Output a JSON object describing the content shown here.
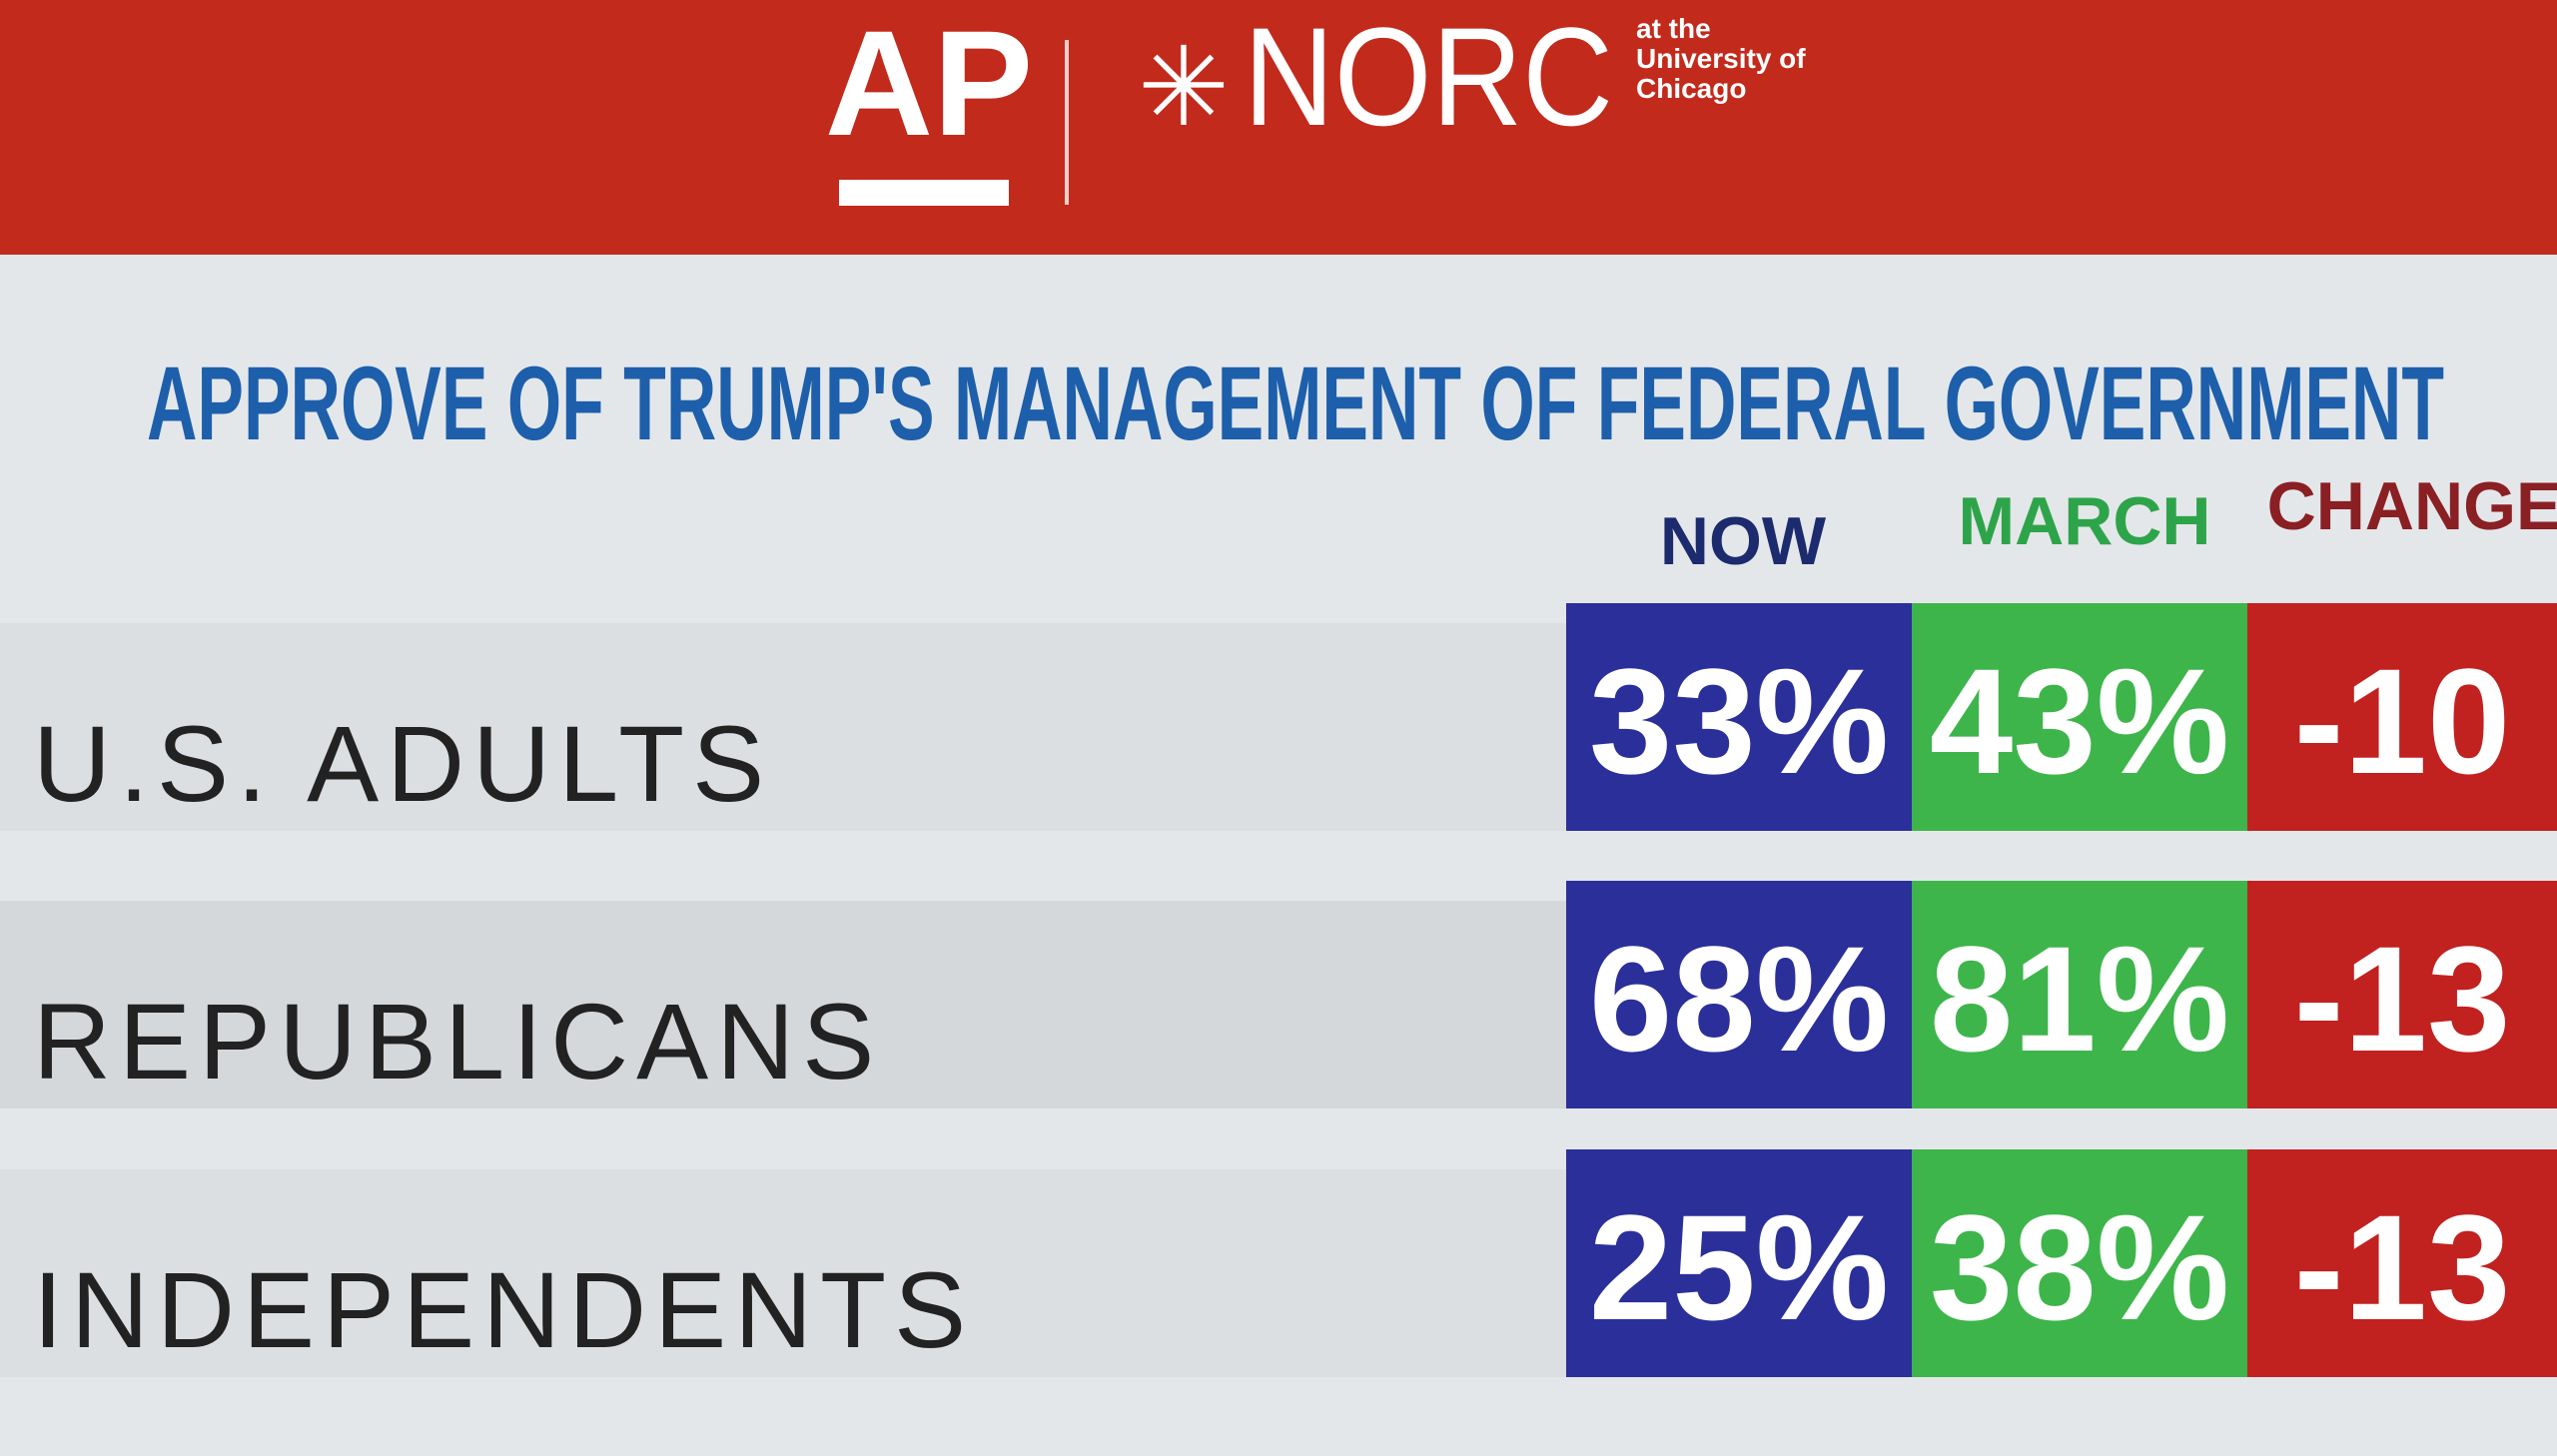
{
  "header": {
    "logo_ap": "AP",
    "logo_norc": "NORC",
    "logo_sub": [
      "at the",
      "University of",
      "Chicago"
    ]
  },
  "title": "APPROVE OF TRUMP'S MANAGEMENT OF FEDERAL GOVERNMENT",
  "table": {
    "columns": [
      "NOW",
      "MARCH",
      "CHANGE"
    ],
    "rows": [
      {
        "label": "U.S. ADULTS",
        "cells": [
          "33%",
          "43%",
          "-10"
        ]
      },
      {
        "label": "REPUBLICANS",
        "cells": [
          "68%",
          "81%",
          "-13"
        ]
      },
      {
        "label": "INDEPENDENTS",
        "cells": [
          "25%",
          "38%",
          "-13"
        ]
      }
    ]
  }
}
